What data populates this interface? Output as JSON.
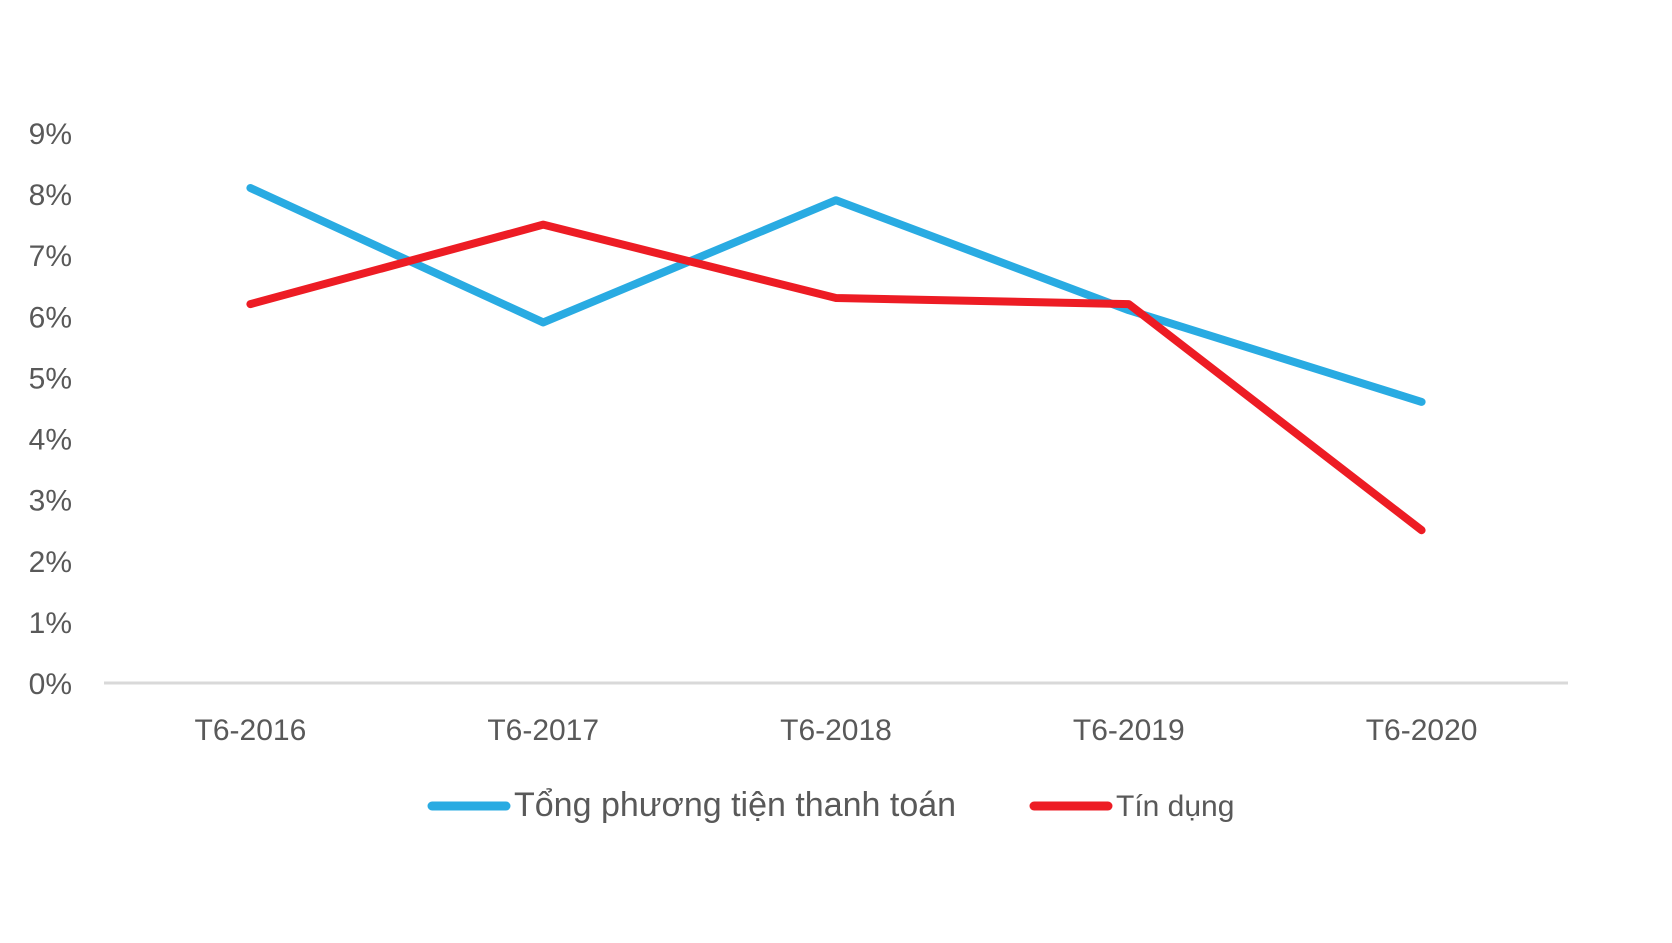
{
  "chart_data": {
    "type": "line",
    "title": "",
    "xlabel": "",
    "ylabel": "",
    "categories": [
      "T6-2016",
      "T6-2017",
      "T6-2018",
      "T6-2019",
      "T6-2020"
    ],
    "ylim": [
      0,
      9
    ],
    "yticks": [
      "0%",
      "1%",
      "2%",
      "3%",
      "4%",
      "5%",
      "6%",
      "7%",
      "8%",
      "9%"
    ],
    "y_unit": "%",
    "grid": false,
    "legend_position": "bottom",
    "series": [
      {
        "name": "Tổng phương tiện thanh toán",
        "color": "#29ABE2",
        "values": [
          8.1,
          5.9,
          7.9,
          6.1,
          4.6
        ]
      },
      {
        "name": "Tín dụng",
        "color": "#ED1C24",
        "values": [
          6.2,
          7.5,
          6.3,
          6.2,
          2.5
        ]
      }
    ]
  }
}
